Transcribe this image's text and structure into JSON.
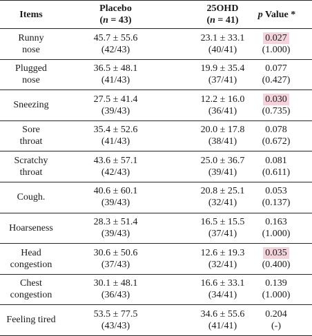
{
  "header": {
    "items": "Items",
    "placebo": "Placebo",
    "placebo_n_prefix": "(",
    "placebo_n_var": "n",
    "placebo_n_rest": " = 43)",
    "ohd": "25OHD",
    "ohd_n_prefix": "(",
    "ohd_n_var": "n",
    "ohd_n_rest": " = 41)",
    "p_var": "p",
    "p_rest": " Value *"
  },
  "highlight_color": "#f5d3dc",
  "rows": [
    {
      "item": [
        "Runny",
        "nose"
      ],
      "placebo": "45.7 ± 55.6",
      "placebo_n": "(42/43)",
      "ohd": "23.1 ± 33.1",
      "ohd_n": "(40/41)",
      "p": "0.027",
      "p2": "(1.000)",
      "highlight": true
    },
    {
      "item": [
        "Plugged",
        "nose"
      ],
      "placebo": "36.5 ± 48.1",
      "placebo_n": "(41/43)",
      "ohd": "19.9 ± 35.4",
      "ohd_n": "(37/41)",
      "p": "0.077",
      "p2": "(0.427)",
      "highlight": false
    },
    {
      "item": [
        "Sneezing"
      ],
      "placebo": "27.5 ± 41.4",
      "placebo_n": "(39/43)",
      "ohd": "12.2 ± 16.0",
      "ohd_n": "(36/41)",
      "p": "0.030",
      "p2": "(0.735)",
      "highlight": true
    },
    {
      "item": [
        "Sore",
        "throat"
      ],
      "placebo": "35.4 ± 52.6",
      "placebo_n": "(41/43)",
      "ohd": "20.0 ± 17.8",
      "ohd_n": "(38/41)",
      "p": "0.078",
      "p2": "(0.672)",
      "highlight": false
    },
    {
      "item": [
        "Scratchy",
        "throat"
      ],
      "placebo": "43.6 ± 57.1",
      "placebo_n": "(42/43)",
      "ohd": "25.0 ± 36.7",
      "ohd_n": "(39/41)",
      "p": "0.081",
      "p2": "(0.611)",
      "highlight": false
    },
    {
      "item": [
        "Cough."
      ],
      "placebo": "40.6 ± 60.1",
      "placebo_n": "(39/43)",
      "ohd": "20.8 ± 25.1",
      "ohd_n": "(32/41)",
      "p": "0.053",
      "p2": "(0.137)",
      "highlight": false
    },
    {
      "item": [
        "Hoarseness"
      ],
      "placebo": "28.3 ± 51.4",
      "placebo_n": "(39/43)",
      "ohd": "16.5 ± 15.5",
      "ohd_n": "(37/41)",
      "p": "0.163",
      "p2": "(1.000)",
      "highlight": false
    },
    {
      "item": [
        "Head",
        "congestion"
      ],
      "placebo": "30.6 ± 50.6",
      "placebo_n": "(37/43)",
      "ohd": "12.6 ± 19.3",
      "ohd_n": "(32/41)",
      "p": "0.035",
      "p2": "(0.400)",
      "highlight": true
    },
    {
      "item": [
        "Chest",
        "congestion"
      ],
      "placebo": "30.1 ± 48.1",
      "placebo_n": "(36/43)",
      "ohd": "16.6 ± 33.1",
      "ohd_n": "(34/41)",
      "p": "0.139",
      "p2": "(1.000)",
      "highlight": false
    },
    {
      "item": [
        "Feeling tired"
      ],
      "placebo": "53.5 ± 77.5",
      "placebo_n": "(43/43)",
      "ohd": "34.6 ± 55.6",
      "ohd_n": "(41/41)",
      "p": "0.204",
      "p2": "(-)",
      "highlight": false
    }
  ]
}
